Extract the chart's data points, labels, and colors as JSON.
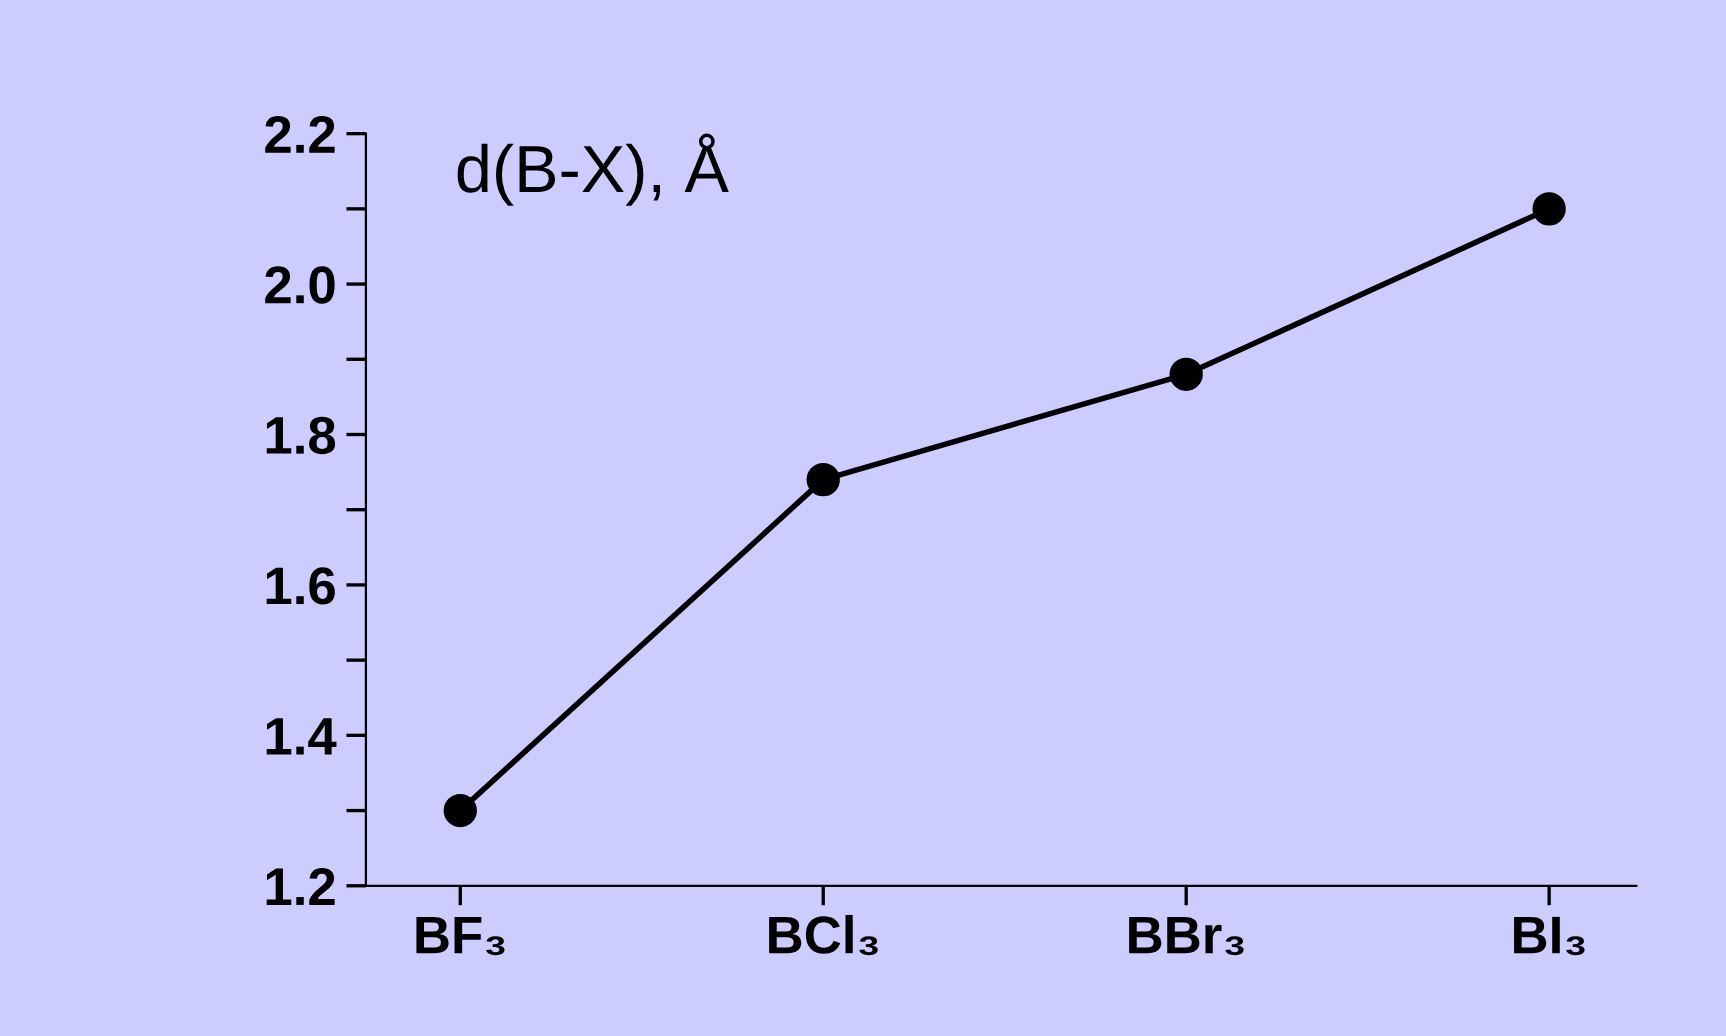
{
  "chart_data": {
    "type": "line",
    "title": "d(B-X), Å",
    "categories": [
      "BF₃",
      "BCl₃",
      "BBr₃",
      "BI₃"
    ],
    "series": [
      {
        "color": "#000000",
        "values": [
          1.3,
          1.74,
          1.88,
          2.1
        ]
      }
    ],
    "ylim": [
      1.2,
      2.2
    ],
    "yticks": [
      1.2,
      {
        "value": 1.3,
        "label": null
      },
      1.4,
      {
        "value": 1.5,
        "label": null
      },
      1.6,
      {
        "value": 1.7,
        "label": null
      },
      1.8,
      {
        "value": 1.9,
        "label": null
      },
      {
        "value": 2.0,
        "label": "2.0"
      },
      {
        "value": 2.1,
        "label": null
      },
      2.2
    ],
    "grid": false,
    "legend": false,
    "marker": "circle",
    "line_style": "solid"
  }
}
